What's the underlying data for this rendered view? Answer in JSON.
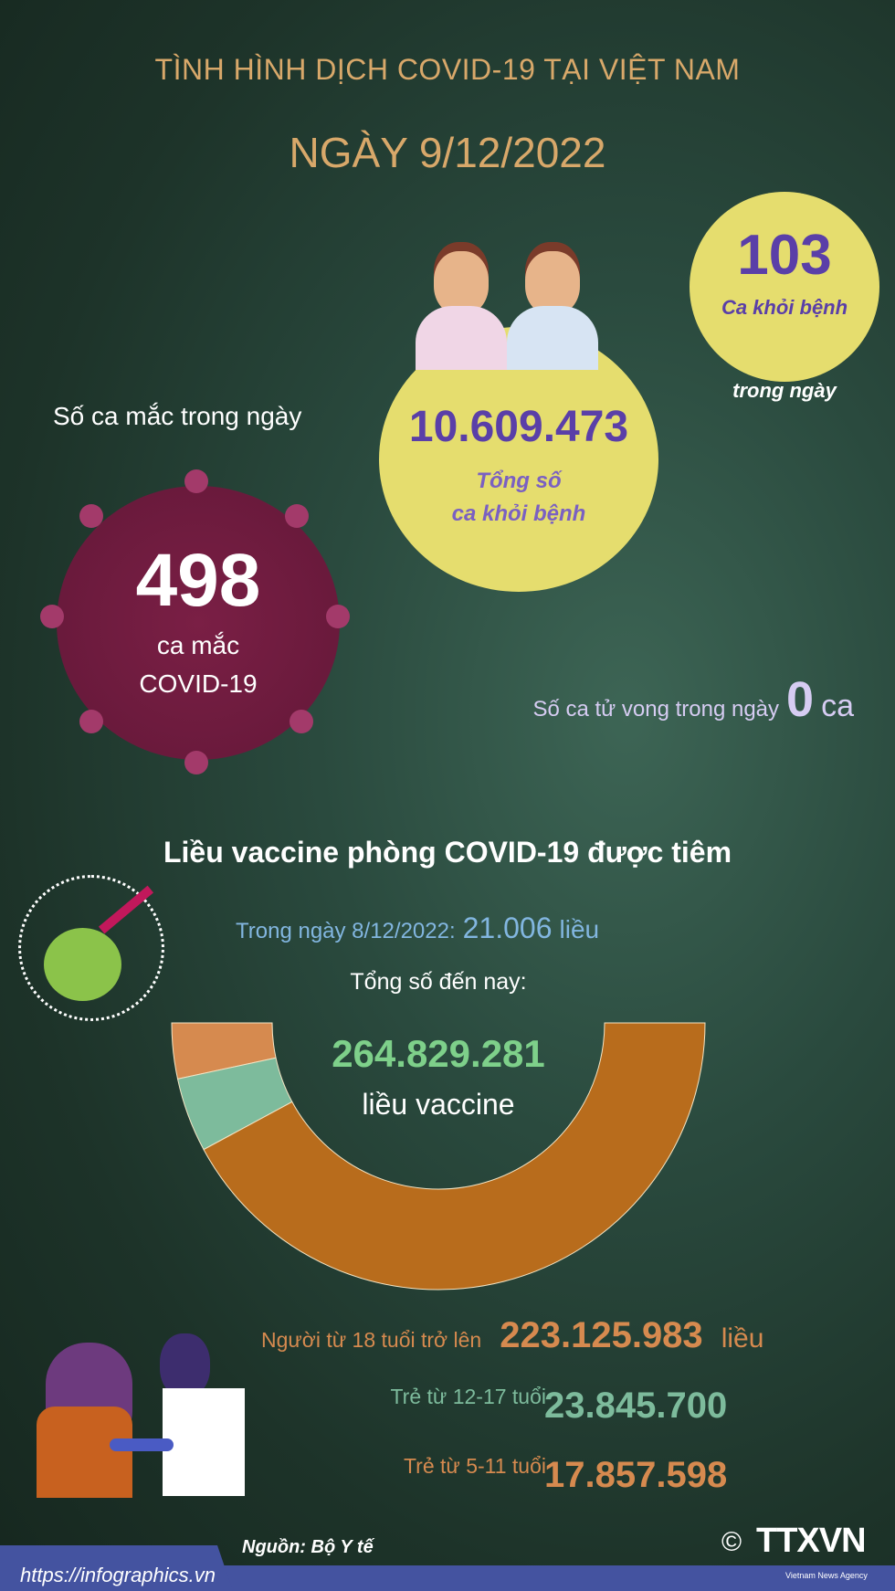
{
  "header": {
    "title": "TÌNH HÌNH DỊCH COVID-19 TẠI VIỆT NAM",
    "date": "NGÀY 9/12/2022"
  },
  "recovered_total": {
    "value": "10.609.473",
    "label_line1": "Tổng số",
    "label_line2": "ca khỏi bệnh"
  },
  "recovered_today": {
    "value": "103",
    "label": "Ca khỏi bệnh",
    "sub": "trong ngày"
  },
  "cases_today": {
    "heading": "Số ca mắc trong ngày",
    "value": "498",
    "label_line1": "ca mắc",
    "label_line2": "COVID-19"
  },
  "deaths": {
    "label": "Số ca tử vong trong ngày",
    "value": "0",
    "unit": "ca"
  },
  "vaccine": {
    "heading": "Liều vaccine phòng COVID-19 được tiêm",
    "daily_label": "Trong ngày 8/12/2022:",
    "daily_value": "21.006",
    "daily_unit": "liều",
    "total_label": "Tổng số đến nay:",
    "total_value": "264.829.281",
    "total_unit": "liều vaccine"
  },
  "breakdown": [
    {
      "label": "Người từ 18 tuổi trở lên",
      "value": "223.125.983",
      "unit": "liều",
      "color": "#b86c1c"
    },
    {
      "label": "Trẻ từ 12-17 tuổi",
      "value": "23.845.700",
      "unit": "",
      "color": "#7dbb9c"
    },
    {
      "label": "Trẻ từ 5-11 tuổi",
      "value": "17.857.598",
      "unit": "",
      "color": "#d68a4f"
    }
  ],
  "chart_data": {
    "type": "pie",
    "style": "half-donut",
    "categories": [
      "Người từ 18 tuổi trở lên",
      "Trẻ từ 12-17 tuổi",
      "Trẻ từ 5-11 tuổi"
    ],
    "values": [
      223125983,
      23845700,
      17857598
    ],
    "colors": [
      "#b86c1c",
      "#7dbb9c",
      "#d68a4f"
    ]
  },
  "footer": {
    "source": "Nguồn: Bộ Y tế",
    "url": "https://infographics.vn",
    "logo": "TTXVN",
    "logo_sub": "Vietnam News Agency",
    "copyright": "©"
  }
}
